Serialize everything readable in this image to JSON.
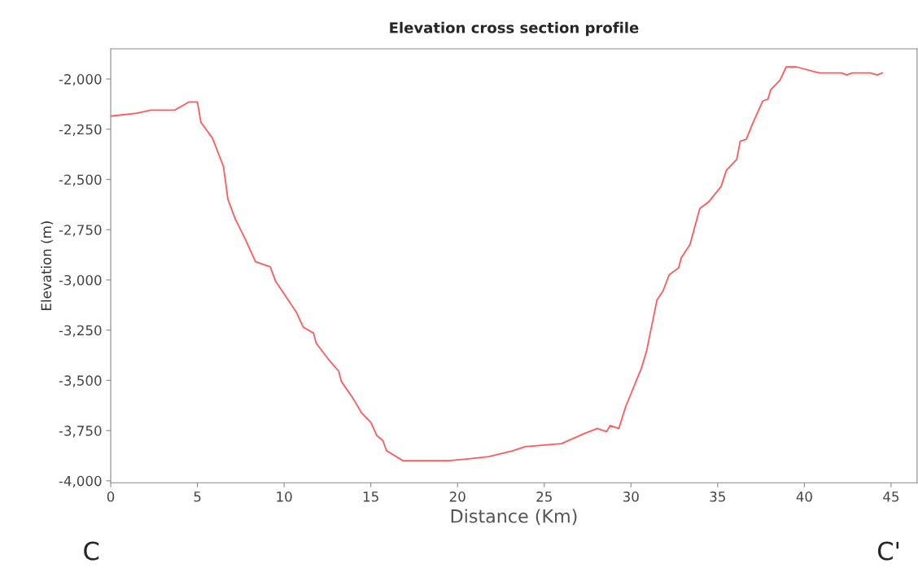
{
  "chart_data": {
    "type": "line",
    "title": "Elevation cross section profile",
    "xlabel": "Distance (Km)",
    "ylabel": "Elevation (m)",
    "series": [
      {
        "color": "#ff5a5a",
        "x": [
          0,
          1.5,
          2.3,
          3.7,
          4.5,
          5.0,
          5.2,
          5.87,
          6.5,
          6.76,
          7.2,
          7.75,
          8.35,
          9.2,
          9.5,
          10.7,
          11.1,
          11.7,
          11.85,
          12.6,
          13.15,
          13.3,
          14.05,
          14.45,
          15.0,
          15.35,
          15.7,
          15.9,
          16.85,
          19.5,
          20.75,
          21.8,
          23.2,
          23.9,
          26.0,
          27.3,
          28.05,
          28.6,
          28.8,
          29.3,
          29.7,
          30.6,
          30.9,
          31.5,
          31.85,
          32.2,
          32.75,
          32.9,
          33.4,
          33.97,
          34.5,
          35.2,
          35.5,
          36.1,
          36.3,
          36.65,
          37.0,
          37.6,
          37.9,
          38.05,
          38.6,
          38.95,
          39.55,
          40.85,
          42.15,
          42.45,
          42.75,
          43.8,
          44.2,
          44.5
        ],
        "values": [
          -2185,
          -2170,
          -2155,
          -2155,
          -2115,
          -2115,
          -2215,
          -2295,
          -2435,
          -2600,
          -2700,
          -2795,
          -2910,
          -2935,
          -3005,
          -3160,
          -3235,
          -3265,
          -3315,
          -3400,
          -3455,
          -3505,
          -3600,
          -3660,
          -3710,
          -3775,
          -3800,
          -3850,
          -3900,
          -3900,
          -3890,
          -3880,
          -3850,
          -3830,
          -3815,
          -3765,
          -3740,
          -3755,
          -3725,
          -3740,
          -3630,
          -3440,
          -3355,
          -3100,
          -3055,
          -2975,
          -2940,
          -2890,
          -2825,
          -2645,
          -2610,
          -2535,
          -2455,
          -2400,
          -2310,
          -2300,
          -2225,
          -2110,
          -2100,
          -2055,
          -2005,
          -1940,
          -1940,
          -1970,
          -1970,
          -1980,
          -1970,
          -1970,
          -1980,
          -1970
        ]
      }
    ],
    "xlim": [
      0,
      46.5
    ],
    "xticks": [
      0,
      5,
      10,
      15,
      20,
      25,
      30,
      35,
      40,
      45
    ],
    "ylim": [
      -4010,
      -1850
    ],
    "yticks": [
      {
        "value": -4000,
        "label": "-4,000"
      },
      {
        "value": -3750,
        "label": "-3,750"
      },
      {
        "value": -3500,
        "label": "-3,500"
      },
      {
        "value": -3250,
        "label": "-3,250"
      },
      {
        "value": -3000,
        "label": "-3,000"
      },
      {
        "value": -2750,
        "label": "-2,750"
      },
      {
        "value": -2500,
        "label": "-2,500"
      },
      {
        "value": -2250,
        "label": "-2,250"
      },
      {
        "value": -2000,
        "label": "-2,000"
      }
    ],
    "grid": false,
    "legend": false,
    "marker": "none",
    "line_style": "solid",
    "annotations": [
      "C",
      "C'"
    ]
  }
}
